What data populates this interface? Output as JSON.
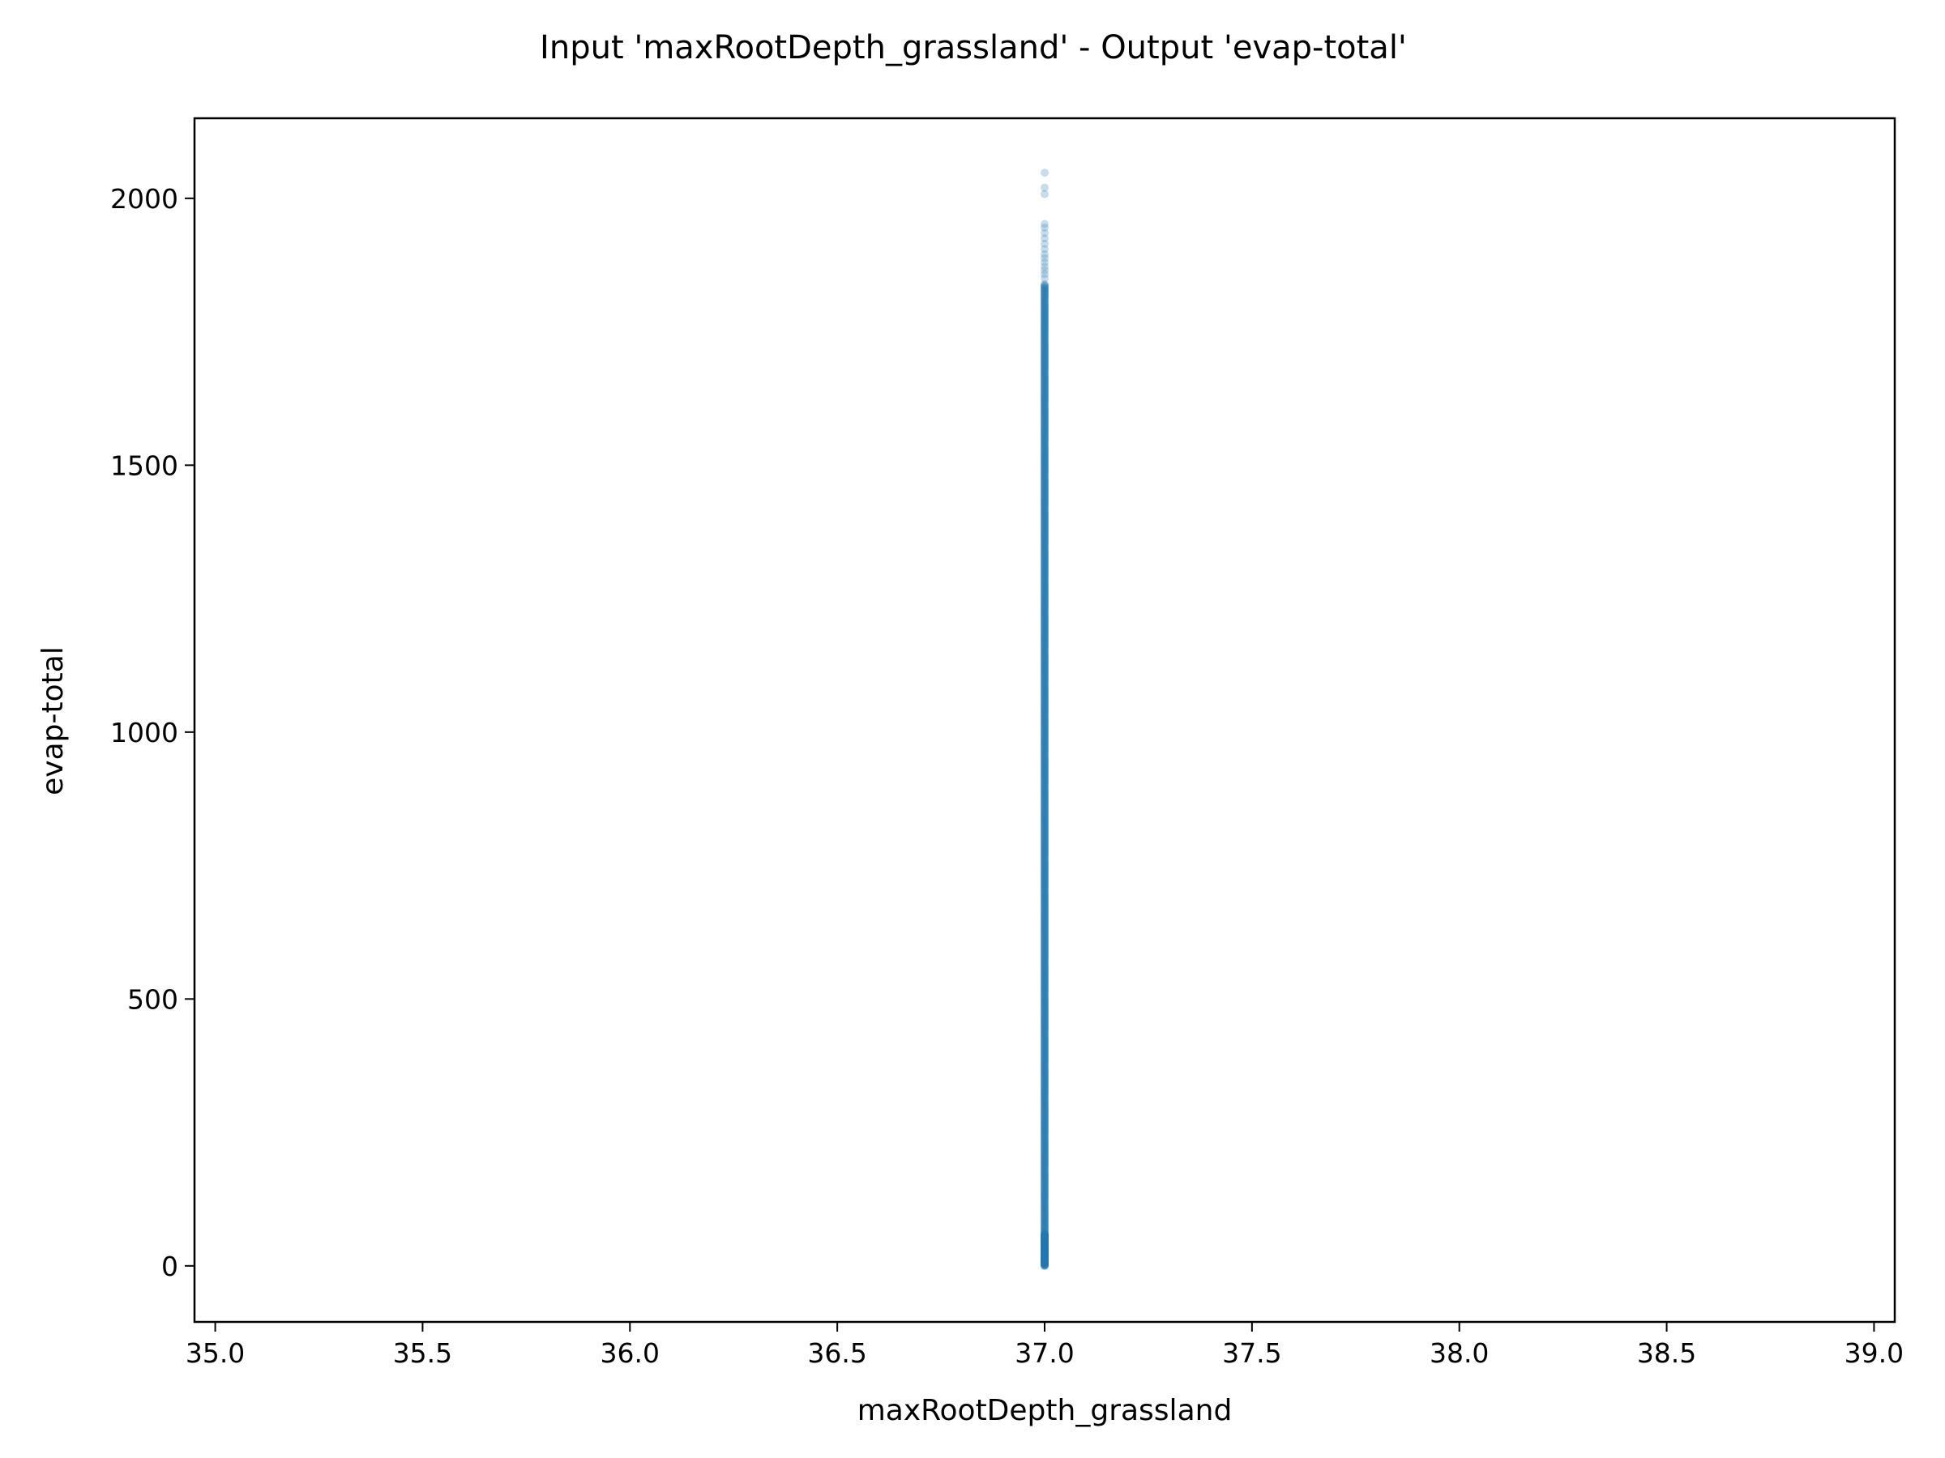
{
  "chart_data": {
    "type": "scatter",
    "title": "Input 'maxRootDepth_grassland' - Output 'evap-total'",
    "xlabel": "maxRootDepth_grassland",
    "ylabel": "evap-total",
    "xlim": [
      34.95,
      39.05
    ],
    "ylim": [
      -105,
      2150
    ],
    "xticks": [
      "35.0",
      "35.5",
      "36.0",
      "36.5",
      "37.0",
      "37.5",
      "38.0",
      "38.5",
      "39.0"
    ],
    "yticks": [
      "0",
      "500",
      "1000",
      "1500",
      "2000"
    ],
    "grid": false,
    "legend": "none",
    "marker_color": "#1f77b4",
    "marker_alpha": 0.25,
    "series": [
      {
        "x_constant": 37.0,
        "y_dense_range": [
          0,
          1840
        ],
        "y_outliers": [
          1850,
          1858,
          1865,
          1872,
          1880,
          1888,
          1895,
          1905,
          1915,
          1925,
          1935,
          1945,
          1952,
          2008,
          2020,
          2048
        ]
      }
    ]
  }
}
